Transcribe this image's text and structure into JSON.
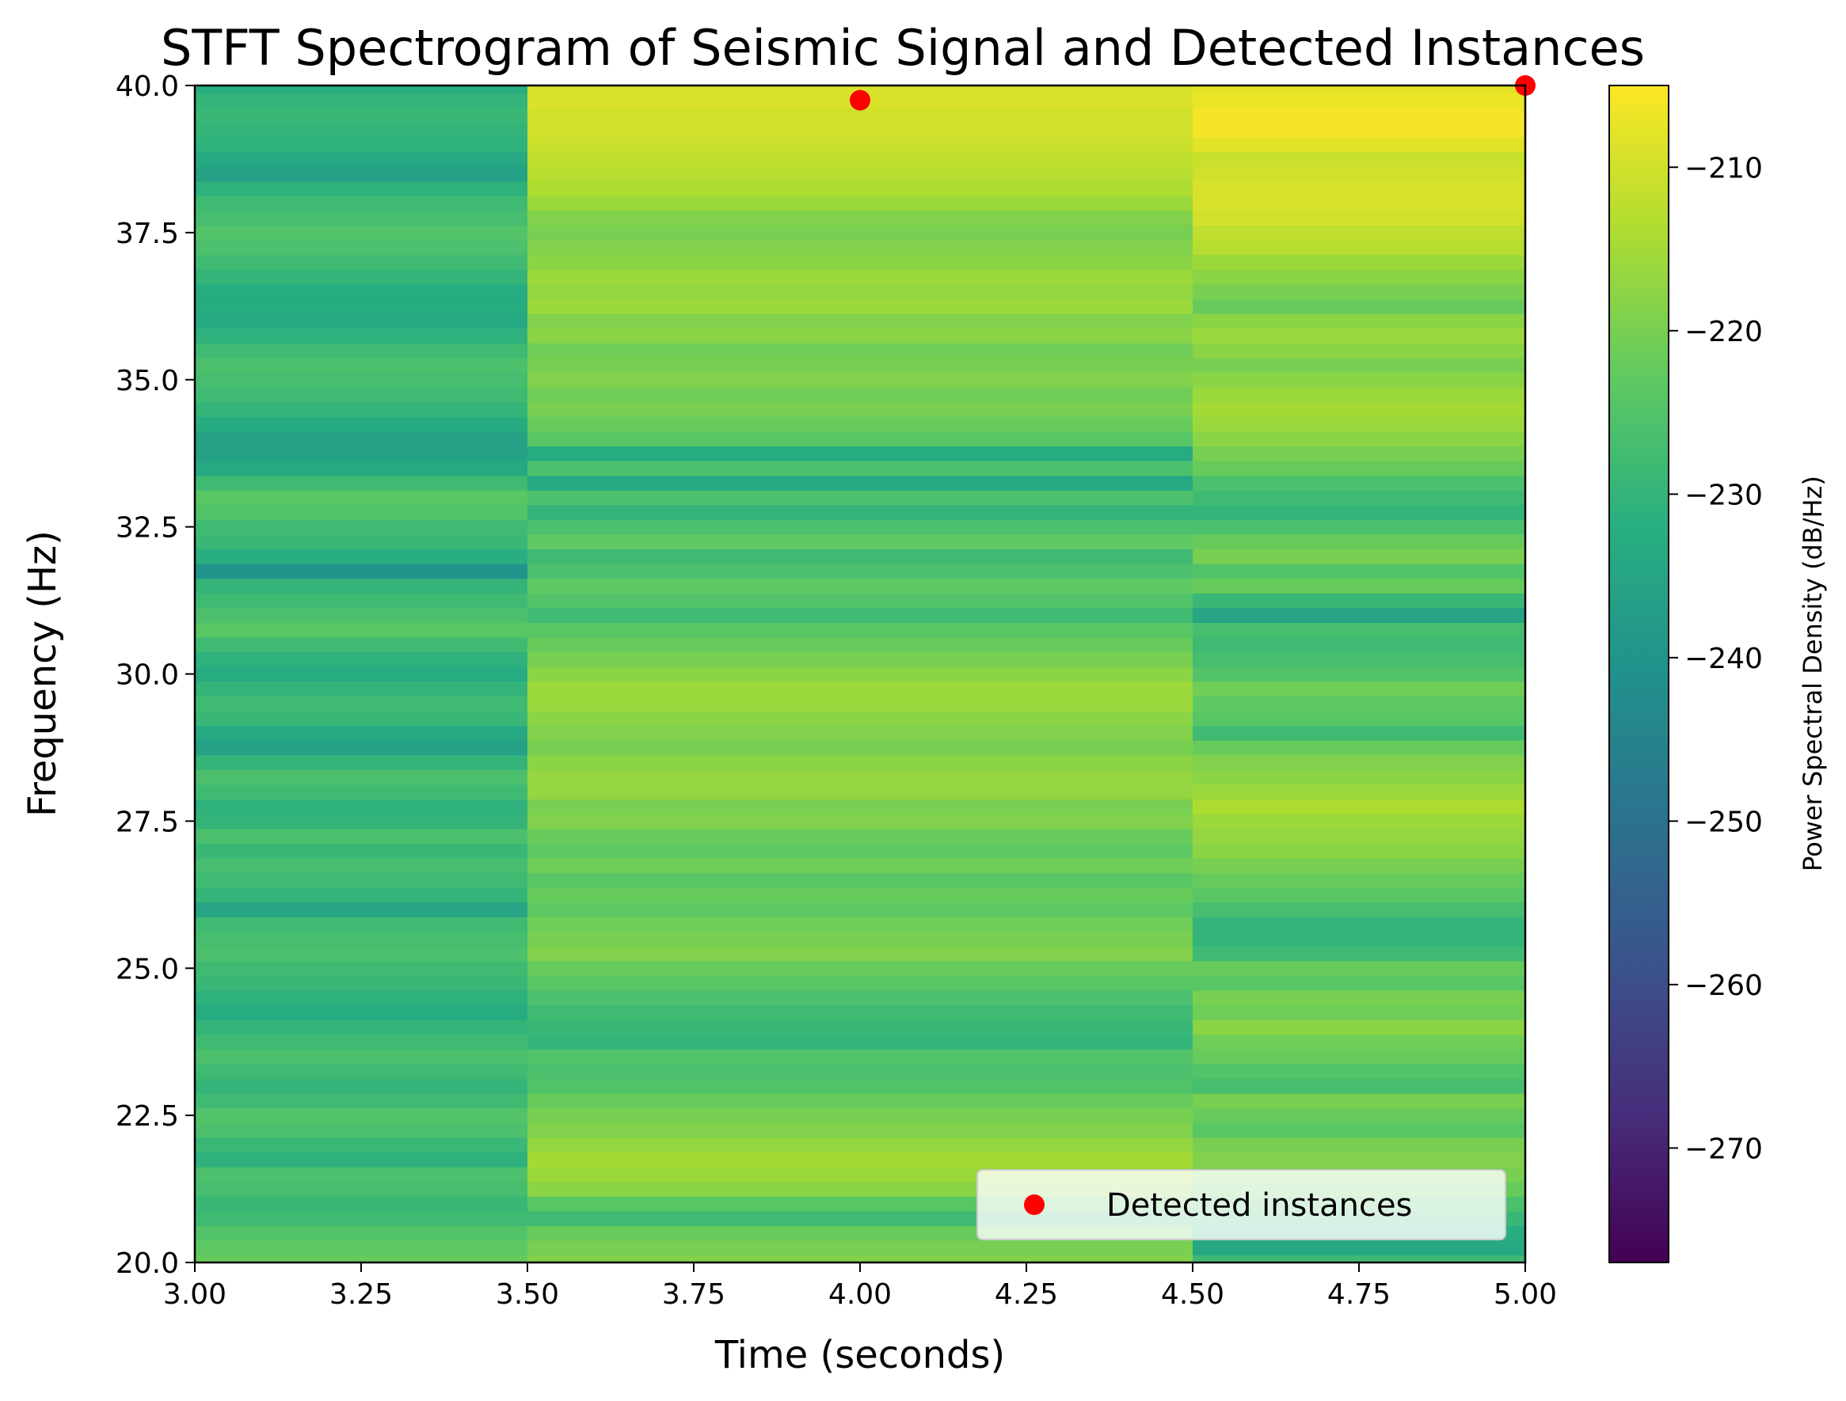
{
  "chart_data": {
    "type": "heatmap",
    "title": "STFT Spectrogram of Seismic Signal and Detected Instances",
    "xlabel": "Time (seconds)",
    "ylabel": "Frequency (Hz)",
    "xlim": [
      3.0,
      5.0
    ],
    "ylim": [
      20.0,
      40.0
    ],
    "x_ticks": [
      "3.00",
      "3.25",
      "3.50",
      "3.75",
      "4.00",
      "4.25",
      "4.50",
      "4.75",
      "5.00"
    ],
    "y_ticks": [
      "20.0",
      "22.5",
      "25.0",
      "27.5",
      "30.0",
      "32.5",
      "35.0",
      "37.5",
      "40.0"
    ],
    "colormap": "viridis",
    "colorbar": {
      "label": "Power Spectral Density (dB/Hz)",
      "range": [
        -277,
        -205
      ],
      "ticks": [
        "−210",
        "−220",
        "−230",
        "−240",
        "−250",
        "−260",
        "−270"
      ]
    },
    "time_bins": [
      3.0,
      3.5,
      4.5,
      5.0
    ],
    "freq_step": 0.25,
    "psd_db": [
      {
        "t_start": 3.0,
        "t_end": 3.5,
        "values": [
          -222,
          -223,
          -225,
          -228,
          -229,
          -227,
          -226,
          -231,
          -229,
          -226,
          -225,
          -228,
          -230,
          -228,
          -226,
          -228,
          -230,
          -233,
          -231,
          -229,
          -228,
          -226,
          -227,
          -228,
          -235,
          -230,
          -228,
          -227,
          -229,
          -226,
          -230,
          -231,
          -228,
          -226,
          -230,
          -236,
          -234,
          -229,
          -228,
          -230,
          -233,
          -231,
          -228,
          -224,
          -226,
          -228,
          -230,
          -240,
          -232,
          -229,
          -228,
          -225,
          -224,
          -228,
          -234,
          -236,
          -236,
          -233,
          -230,
          -228,
          -227,
          -226,
          -228,
          -231,
          -234,
          -233,
          -233,
          -230,
          -228,
          -226,
          -225,
          -227,
          -228,
          -231,
          -236,
          -234,
          -231,
          -230,
          -229,
          -230,
          -232,
          -234,
          -234,
          -233,
          -228,
          -230,
          -229,
          -231,
          -228,
          -227,
          -235,
          -229,
          -226,
          -232,
          -236,
          -233,
          -229,
          -226,
          -228,
          -226,
          -226
        ]
      },
      {
        "t_start": 3.5,
        "t_end": 4.5,
        "values": [
          -219,
          -220,
          -222,
          -228,
          -224,
          -218,
          -216,
          -215,
          -217,
          -219,
          -220,
          -222,
          -225,
          -226,
          -225,
          -230,
          -229,
          -228,
          -226,
          -224,
          -222,
          -219,
          -220,
          -221,
          -223,
          -222,
          -224,
          -221,
          -223,
          -222,
          -219,
          -220,
          -217,
          -217,
          -218,
          -220,
          -219,
          -218,
          -216,
          -216,
          -218,
          -220,
          -222,
          -224,
          -228,
          -225,
          -223,
          -226,
          -228,
          -223,
          -226,
          -230,
          -226,
          -234,
          -226,
          -233,
          -224,
          -222,
          -220,
          -221,
          -219,
          -220,
          -221,
          -218,
          -219,
          -216,
          -217,
          -216,
          -218,
          -219,
          -220,
          -219,
          -216,
          -214,
          -213,
          -212,
          -211,
          -210,
          -210,
          -209,
          -209,
          -209,
          -210,
          -210,
          -210,
          -209,
          -209,
          -210,
          -211,
          -213,
          -212,
          -211,
          -210,
          -209,
          -210,
          -208,
          -207,
          -207,
          -206,
          -206,
          -206
        ]
      },
      {
        "t_start": 4.5,
        "t_end": 5.0,
        "values": [
          -228,
          -234,
          -232,
          -229,
          -226,
          -222,
          -220,
          -219,
          -220,
          -224,
          -222,
          -220,
          -227,
          -225,
          -222,
          -221,
          -218,
          -221,
          -220,
          -224,
          -222,
          -228,
          -230,
          -230,
          -227,
          -224,
          -222,
          -220,
          -218,
          -217,
          -216,
          -214,
          -216,
          -218,
          -219,
          -222,
          -228,
          -224,
          -223,
          -221,
          -225,
          -227,
          -228,
          -227,
          -235,
          -229,
          -222,
          -225,
          -220,
          -222,
          -226,
          -230,
          -228,
          -226,
          -222,
          -220,
          -218,
          -216,
          -215,
          -216,
          -218,
          -220,
          -218,
          -216,
          -218,
          -222,
          -220,
          -218,
          -216,
          -213,
          -212,
          -210,
          -209,
          -209,
          -210,
          -211,
          -208,
          -206,
          -206,
          -207,
          -208,
          -210,
          -211,
          -209,
          -210,
          -216,
          -211,
          -209,
          -209,
          -208,
          -208,
          -208,
          -208,
          -207,
          -207,
          -206,
          -206,
          -206,
          -206,
          -206,
          -206
        ]
      }
    ],
    "series": [
      {
        "name": "Detected instances",
        "color": "#ff0000",
        "marker": "circle",
        "points": [
          {
            "x": 4.0,
            "y": 39.75
          },
          {
            "x": 5.0,
            "y": 40.0
          }
        ]
      }
    ],
    "legend": {
      "placement": "lower-right",
      "entries": [
        "Detected instances"
      ]
    },
    "grid": false
  }
}
